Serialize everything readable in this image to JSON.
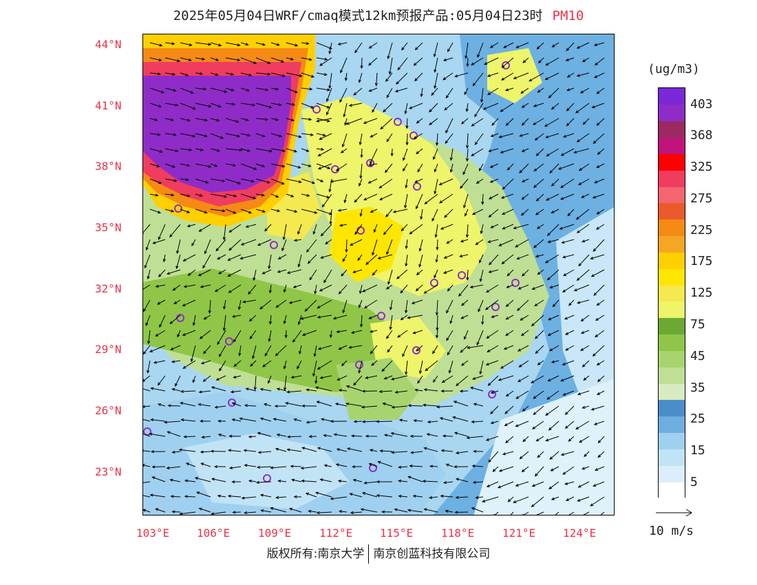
{
  "title": {
    "text": "2025年05月04日WRF/cmaq模式12km预报产品:05月04日23时",
    "variable": "PM10"
  },
  "map": {
    "lon_labels": [
      "103°E",
      "106°E",
      "109°E",
      "112°E",
      "115°E",
      "118°E",
      "121°E",
      "124°E"
    ],
    "lat_labels": [
      "44°N",
      "41°N",
      "38°N",
      "35°N",
      "32°N",
      "29°N",
      "26°N",
      "23°N"
    ]
  },
  "colorbar": {
    "unit": "(ug/m3)",
    "colors": [
      "#ffffff",
      "#dbeefb",
      "#c1e3f6",
      "#9fd0f0",
      "#6daee0",
      "#4a8ec9",
      "#d9ebc0",
      "#bfdf95",
      "#a7d46f",
      "#8fc647",
      "#6aaa34",
      "#eef56a",
      "#f4e94f",
      "#ffe600",
      "#ffcf00",
      "#f5a623",
      "#f58a14",
      "#ea5a2a",
      "#f4666e",
      "#f03c5f",
      "#ff0000",
      "#c0147a",
      "#9b2a63",
      "#8f2cc8",
      "#7a28d8"
    ],
    "labels": [
      "5",
      "15",
      "25",
      "35",
      "45",
      "75",
      "125",
      "175",
      "225",
      "275",
      "325",
      "368",
      "403"
    ]
  },
  "wind_reference": {
    "label": "10 m/s"
  },
  "footer": {
    "left": "版权所有:南京大学",
    "right": "南京创蓝科技有限公司"
  }
}
